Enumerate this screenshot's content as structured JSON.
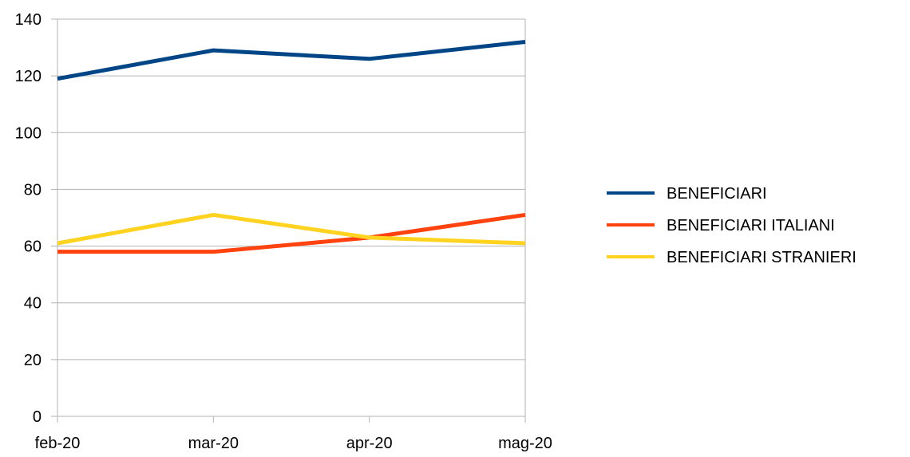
{
  "chart_data": {
    "type": "line",
    "title": "",
    "xlabel": "",
    "ylabel": "",
    "categories": [
      "feb-20",
      "mar-20",
      "apr-20",
      "mag-20"
    ],
    "ylim": [
      0,
      140
    ],
    "yticks": [
      0,
      20,
      40,
      60,
      80,
      100,
      120,
      140
    ],
    "grid": true,
    "legend_position": "right",
    "series": [
      {
        "name": "BENEFICIARI",
        "color": "#004586",
        "values": [
          119,
          129,
          126,
          132
        ]
      },
      {
        "name": "BENEFICIARI ITALIANI",
        "color": "#ff420e",
        "values": [
          58,
          58,
          63,
          71
        ]
      },
      {
        "name": "BENEFICIARI STRANIERI",
        "color": "#ffd320",
        "values": [
          61,
          71,
          63,
          61
        ]
      }
    ]
  }
}
